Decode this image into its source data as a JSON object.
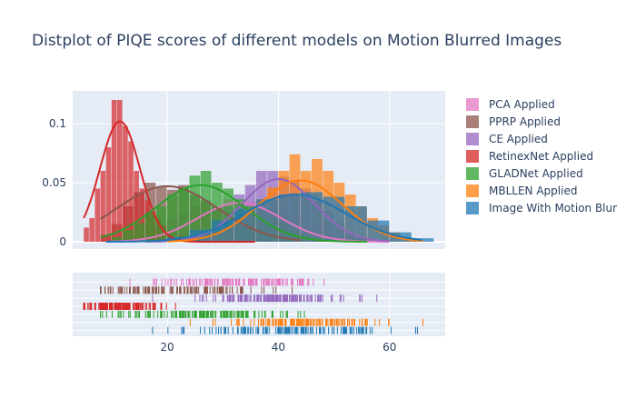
{
  "chart_data": {
    "type": "distplot",
    "title": "Distplot of PIQE scores of different models on Motion Blurred Images",
    "xlabel": "",
    "ylabel": "",
    "xlim": [
      3,
      70
    ],
    "ylim": [
      0,
      0.125
    ],
    "xticks": [
      20,
      40,
      60
    ],
    "yticks": [
      0,
      0.05,
      0.1
    ],
    "ytick_labels": [
      "0",
      "0.05",
      "0.1"
    ],
    "grid": true,
    "legend_position": "right",
    "series": [
      {
        "name": "PCA Applied",
        "color": "#e377c2",
        "mean": 33,
        "sd": 7.5,
        "peak": 0.033,
        "min": 10,
        "max": 60,
        "hist_x": [
          10,
          12,
          14,
          16,
          18,
          20,
          22,
          24,
          26,
          28,
          30,
          32,
          34,
          36,
          38,
          40,
          42,
          44,
          46,
          48,
          50,
          52,
          54,
          56,
          58
        ],
        "hist_y": [
          0.002,
          0.004,
          0.006,
          0.01,
          0.014,
          0.018,
          0.024,
          0.03,
          0.034,
          0.03,
          0.036,
          0.032,
          0.034,
          0.028,
          0.03,
          0.03,
          0.026,
          0.02,
          0.016,
          0.012,
          0.008,
          0.005,
          0.003,
          0.002,
          0.001
        ]
      },
      {
        "name": "PPRP Applied",
        "color": "#8c564b",
        "mean": 20,
        "sd": 9,
        "peak": 0.047,
        "min": 8,
        "max": 44,
        "hist_x": [
          8,
          10,
          12,
          14,
          16,
          18,
          20,
          22,
          24,
          26,
          28,
          30,
          32,
          34,
          36,
          38,
          40,
          42
        ],
        "hist_y": [
          0.006,
          0.015,
          0.03,
          0.042,
          0.05,
          0.046,
          0.044,
          0.048,
          0.04,
          0.035,
          0.03,
          0.026,
          0.02,
          0.016,
          0.01,
          0.006,
          0.003,
          0.002
        ]
      },
      {
        "name": "CE Applied",
        "color": "#9467bd",
        "mean": 40,
        "sd": 6.5,
        "peak": 0.053,
        "min": 16,
        "max": 60,
        "hist_x": [
          22,
          24,
          26,
          28,
          30,
          32,
          34,
          36,
          38,
          40,
          42,
          44,
          46,
          48,
          50,
          52,
          54
        ],
        "hist_y": [
          0.004,
          0.008,
          0.012,
          0.02,
          0.03,
          0.04,
          0.048,
          0.06,
          0.06,
          0.055,
          0.052,
          0.045,
          0.035,
          0.026,
          0.016,
          0.008,
          0.004
        ]
      },
      {
        "name": "RetinexNet Applied",
        "color": "#d62728",
        "mean": 11.5,
        "sd": 3.6,
        "peak": 0.102,
        "min": 5,
        "max": 36,
        "hist_x": [
          5,
          6,
          7,
          8,
          9,
          10,
          11,
          12,
          13,
          14,
          15,
          16,
          17,
          18,
          19,
          20,
          22,
          24,
          26,
          28,
          30
        ],
        "hist_y": [
          0.012,
          0.02,
          0.045,
          0.06,
          0.08,
          0.12,
          0.12,
          0.098,
          0.085,
          0.06,
          0.045,
          0.035,
          0.025,
          0.02,
          0.014,
          0.01,
          0.006,
          0.004,
          0.003,
          0.002,
          0.001
        ]
      },
      {
        "name": "GLADNet Applied",
        "color": "#2ca02c",
        "mean": 26,
        "sd": 8,
        "peak": 0.048,
        "min": 8,
        "max": 56,
        "hist_x": [
          10,
          12,
          14,
          16,
          18,
          20,
          22,
          24,
          26,
          28,
          30,
          32,
          34,
          36,
          38,
          40,
          42,
          44,
          46,
          48
        ],
        "hist_y": [
          0.004,
          0.01,
          0.016,
          0.024,
          0.03,
          0.04,
          0.046,
          0.056,
          0.06,
          0.05,
          0.045,
          0.036,
          0.03,
          0.024,
          0.02,
          0.016,
          0.01,
          0.006,
          0.003,
          0.002
        ]
      },
      {
        "name": "MBLLEN Applied",
        "color": "#ff7f0e",
        "mean": 44,
        "sd": 7.5,
        "peak": 0.052,
        "min": 20,
        "max": 66,
        "hist_x": [
          26,
          28,
          30,
          32,
          34,
          36,
          38,
          40,
          42,
          44,
          46,
          48,
          50,
          52,
          54,
          56,
          58,
          60,
          62,
          64
        ],
        "hist_y": [
          0.004,
          0.008,
          0.012,
          0.02,
          0.028,
          0.036,
          0.046,
          0.06,
          0.074,
          0.06,
          0.07,
          0.06,
          0.05,
          0.04,
          0.03,
          0.02,
          0.014,
          0.008,
          0.004,
          0.002
        ]
      },
      {
        "name": "Image With Motion Blur",
        "color": "#1f77b4",
        "mean": 43,
        "sd": 9,
        "peak": 0.04,
        "min": 9,
        "max": 66,
        "hist_x": [
          20,
          24,
          28,
          32,
          36,
          40,
          44,
          48,
          52,
          56,
          60,
          64
        ],
        "hist_y": [
          0.004,
          0.01,
          0.018,
          0.028,
          0.036,
          0.04,
          0.042,
          0.038,
          0.03,
          0.018,
          0.008,
          0.003
        ]
      }
    ]
  }
}
